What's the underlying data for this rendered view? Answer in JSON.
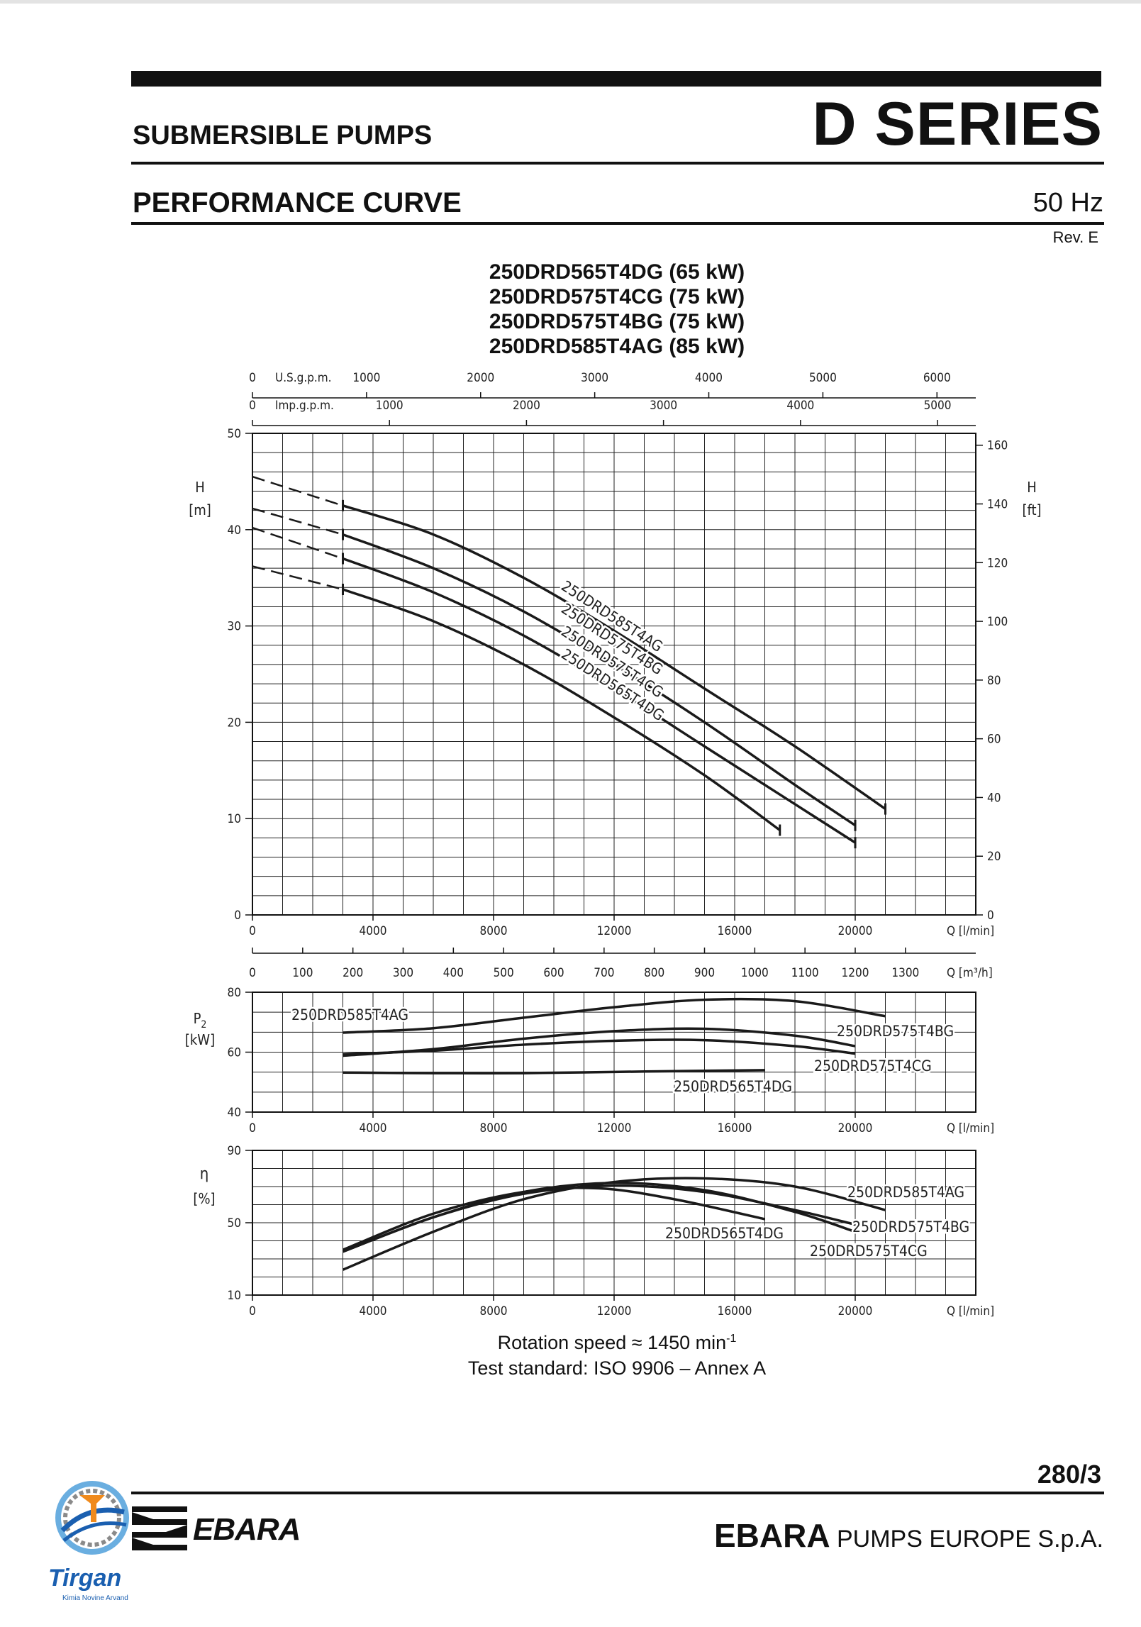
{
  "header": {
    "category": "SUBMERSIBLE PUMPS",
    "series": "D SERIES",
    "section": "PERFORMANCE CURVE",
    "frequency": "50 Hz",
    "revision": "Rev. E"
  },
  "models": [
    "250DRD565T4DG (65 kW)",
    "250DRD575T4CG (75 kW)",
    "250DRD575T4BG (75 kW)",
    "250DRD585T4AG (85 kW)"
  ],
  "notes": {
    "rotation_text": "Rotation speed ≈ 1450 min",
    "rotation_exp": "-1",
    "standard": "Test standard: ISO 9906 – Annex A"
  },
  "footer": {
    "page": "280/3",
    "brand_bold": "EBARA",
    "brand_rest": "PUMPS EUROPE S.p.A.",
    "logo_text": "EBARA",
    "partner_logo": "Tirgan",
    "partner_sub": "Kimia Novine Arvand"
  },
  "colors": {
    "curve": "#1a1a1a",
    "grid": "#222222",
    "accent": "#1a5fb0"
  },
  "chart_data": [
    {
      "type": "line",
      "panel": "head",
      "ylabel": "H",
      "yunit": "[m]",
      "ylabel_right": "H",
      "yunit_right": "[ft]",
      "xlabel": "Q [l/min]",
      "xlim": [
        0,
        24000
      ],
      "ylim": [
        0,
        50
      ],
      "yticks": [
        0,
        10,
        20,
        30,
        40,
        50
      ],
      "yticks_right": [
        0,
        20,
        40,
        60,
        80,
        100,
        120,
        140,
        160
      ],
      "xticks": [
        0,
        4000,
        8000,
        12000,
        16000,
        20000
      ],
      "top_axes": [
        {
          "label": "U.S.g.p.m.",
          "ticks": [
            0,
            1000,
            2000,
            3000,
            4000,
            5000,
            6000
          ]
        },
        {
          "label": "Imp.g.p.m.",
          "ticks": [
            0,
            1000,
            2000,
            3000,
            4000,
            5000
          ]
        }
      ],
      "series": [
        {
          "name": "250DRD585T4AG",
          "dashed": {
            "x": [
              0,
              3000
            ],
            "y": [
              45.5,
              42.5
            ]
          },
          "x": [
            3000,
            6000,
            9000,
            12000,
            15000,
            18000,
            21000
          ],
          "y": [
            42.5,
            39.5,
            35.0,
            29.5,
            23.5,
            17.5,
            11.0
          ]
        },
        {
          "name": "250DRD575T4BG",
          "dashed": {
            "x": [
              0,
              3000
            ],
            "y": [
              42.2,
              39.5
            ]
          },
          "x": [
            3000,
            6000,
            9000,
            12000,
            15000,
            18000,
            20000
          ],
          "y": [
            39.5,
            36.0,
            31.5,
            26.0,
            20.0,
            13.5,
            9.3
          ]
        },
        {
          "name": "250DRD575T4CG",
          "dashed": {
            "x": [
              0,
              3000
            ],
            "y": [
              40.2,
              37.0
            ]
          },
          "x": [
            3000,
            6000,
            9000,
            12000,
            15000,
            18000,
            20000
          ],
          "y": [
            37.0,
            33.5,
            29.0,
            23.5,
            17.5,
            11.5,
            7.5
          ]
        },
        {
          "name": "250DRD565T4DG",
          "dashed": {
            "x": [
              0,
              3000
            ],
            "y": [
              36.2,
              33.8
            ]
          },
          "x": [
            3000,
            6000,
            9000,
            12000,
            15000,
            17500
          ],
          "y": [
            33.8,
            30.5,
            26.0,
            20.5,
            14.5,
            8.8
          ]
        }
      ]
    },
    {
      "type": "line",
      "panel": "power",
      "ylabel": "P",
      "ylabel_sub": "2",
      "yunit": "[kW]",
      "xlabel": "Q [l/min]",
      "xlim": [
        0,
        24000
      ],
      "ylim": [
        40,
        80
      ],
      "yticks": [
        40,
        60,
        80
      ],
      "xticks": [
        0,
        4000,
        8000,
        12000,
        16000,
        20000
      ],
      "top_axis": {
        "label": "Q [m³/h]",
        "ticks": [
          0,
          100,
          200,
          300,
          400,
          500,
          600,
          700,
          800,
          900,
          1000,
          1100,
          1200,
          1300
        ]
      },
      "series": [
        {
          "name": "250DRD585T4AG",
          "x": [
            3000,
            6000,
            9000,
            12000,
            15000,
            18000,
            21000
          ],
          "y": [
            66.5,
            68.0,
            71.5,
            75.0,
            77.5,
            77.0,
            72.0
          ]
        },
        {
          "name": "250DRD575T4BG",
          "x": [
            3000,
            6000,
            9000,
            12000,
            15000,
            18000,
            20000
          ],
          "y": [
            58.8,
            61.0,
            64.5,
            67.0,
            67.8,
            65.5,
            62.0
          ]
        },
        {
          "name": "250DRD575T4CG",
          "x": [
            3000,
            6000,
            9000,
            12000,
            15000,
            18000,
            20000
          ],
          "y": [
            59.3,
            60.5,
            62.5,
            63.8,
            64.0,
            62.0,
            59.5
          ]
        },
        {
          "name": "250DRD565T4DG",
          "x": [
            3000,
            6000,
            9000,
            12000,
            15000,
            17000
          ],
          "y": [
            53.2,
            53.0,
            53.0,
            53.4,
            53.8,
            54.0
          ]
        }
      ]
    },
    {
      "type": "line",
      "panel": "efficiency",
      "ylabel": "η",
      "yunit": "[%]",
      "xlabel": "Q [l/min]",
      "xlim": [
        0,
        24000
      ],
      "ylim": [
        10,
        90
      ],
      "yticks": [
        10,
        50,
        90
      ],
      "xticks": [
        0,
        4000,
        8000,
        12000,
        16000,
        20000
      ],
      "series": [
        {
          "name": "250DRD585T4AG",
          "x": [
            3000,
            6000,
            9000,
            12000,
            15000,
            18000,
            21000
          ],
          "y": [
            24.0,
            45.0,
            63.0,
            72.5,
            74.5,
            70.0,
            57.0
          ]
        },
        {
          "name": "250DRD575T4BG",
          "x": [
            3000,
            6000,
            9000,
            12000,
            15000,
            18000,
            20000
          ],
          "y": [
            34.0,
            53.0,
            66.0,
            70.5,
            67.0,
            57.0,
            49.0
          ]
        },
        {
          "name": "250DRD575T4CG",
          "x": [
            3000,
            6000,
            9000,
            12000,
            15000,
            18000,
            20000
          ],
          "y": [
            34.0,
            53.0,
            67.0,
            72.0,
            68.0,
            56.0,
            45.0
          ]
        },
        {
          "name": "250DRD565T4DG",
          "x": [
            3000,
            6000,
            9000,
            11500,
            14000,
            17000
          ],
          "y": [
            35.0,
            55.0,
            67.0,
            69.0,
            63.0,
            52.0
          ]
        }
      ]
    }
  ]
}
